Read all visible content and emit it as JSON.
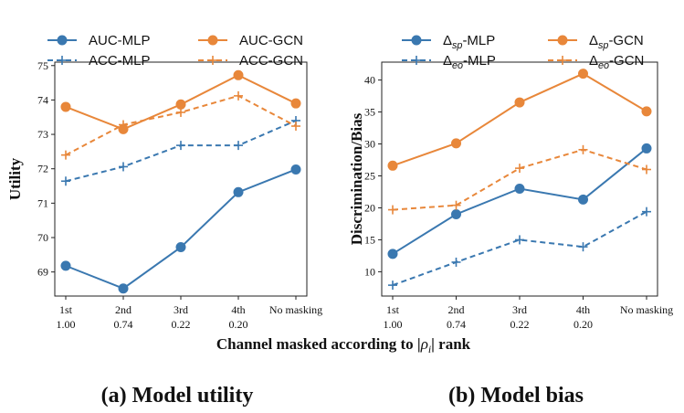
{
  "x_label": "Channel masked according to |ρ_i| rank",
  "colors": {
    "mlp": "#3a78b0",
    "gcn": "#e8873a"
  },
  "chart_data": [
    {
      "type": "line",
      "caption": "(a) Model utility",
      "ylabel": "Utility",
      "categories": [
        [
          "1st",
          "1.00"
        ],
        [
          "2nd",
          "0.74"
        ],
        [
          "3rd",
          "0.22"
        ],
        [
          "4th",
          "0.20"
        ],
        [
          "No masking",
          ""
        ]
      ],
      "ylim": [
        68.3,
        75.1
      ],
      "yticks": [
        69,
        70,
        71,
        72,
        73,
        74,
        75
      ],
      "grid": false,
      "legend_position": "top",
      "series": [
        {
          "name": "AUC-MLP",
          "model": "mlp",
          "style": "solid",
          "marker": "circle",
          "values": [
            69.18,
            68.52,
            69.72,
            71.32,
            71.98
          ]
        },
        {
          "name": "AUC-GCN",
          "model": "gcn",
          "style": "solid",
          "marker": "circle",
          "values": [
            73.8,
            73.15,
            73.87,
            74.72,
            73.9
          ]
        },
        {
          "name": "ACC-MLP",
          "model": "mlp",
          "style": "dashed",
          "marker": "plus",
          "values": [
            71.64,
            72.06,
            72.68,
            72.68,
            73.4
          ]
        },
        {
          "name": "ACC-GCN",
          "model": "gcn",
          "style": "dashed",
          "marker": "plus",
          "values": [
            72.4,
            73.28,
            73.64,
            74.12,
            73.24
          ]
        }
      ]
    },
    {
      "type": "line",
      "caption": "(b) Model bias",
      "ylabel": "Discrimination/Bias",
      "categories": [
        [
          "1st",
          "1.00"
        ],
        [
          "2nd",
          "0.74"
        ],
        [
          "3rd",
          "0.22"
        ],
        [
          "4th",
          "0.20"
        ],
        [
          "No masking",
          ""
        ]
      ],
      "ylim": [
        6.2,
        42.8
      ],
      "yticks": [
        10,
        15,
        20,
        25,
        30,
        35,
        40
      ],
      "grid": false,
      "legend_position": "top",
      "series": [
        {
          "name": "Δ_sp-MLP",
          "model": "mlp",
          "style": "solid",
          "marker": "circle",
          "values": [
            12.8,
            19.0,
            23.0,
            21.3,
            29.3
          ]
        },
        {
          "name": "Δ_sp-GCN",
          "model": "gcn",
          "style": "solid",
          "marker": "circle",
          "values": [
            26.6,
            30.1,
            36.5,
            41.0,
            35.1
          ]
        },
        {
          "name": "Δ_eo-MLP",
          "model": "mlp",
          "style": "dashed",
          "marker": "plus",
          "values": [
            7.9,
            11.5,
            15.0,
            13.9,
            19.4
          ]
        },
        {
          "name": "Δ_eo-GCN",
          "model": "gcn",
          "style": "dashed",
          "marker": "plus",
          "values": [
            19.7,
            20.4,
            26.2,
            29.1,
            26.0
          ]
        }
      ]
    }
  ]
}
